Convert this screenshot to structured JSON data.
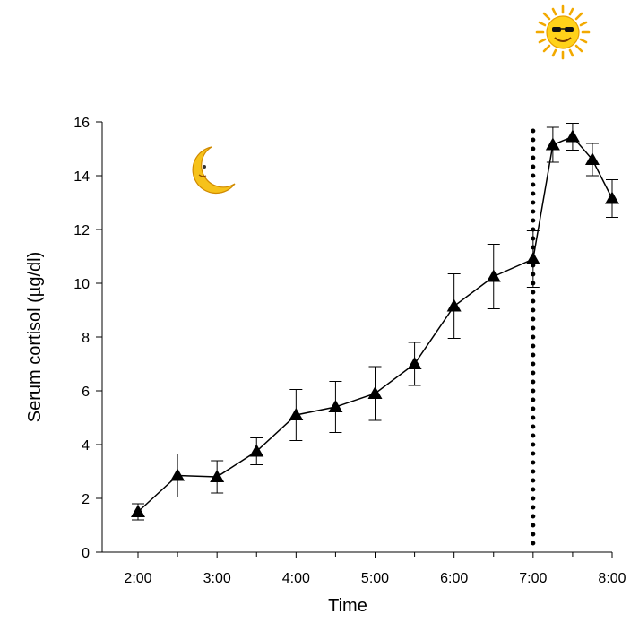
{
  "chart_data": {
    "type": "line",
    "xlabel": "Time",
    "ylabel": "Serum cortisol (µg/dl)",
    "x_ticks": [
      "2:00",
      "3:00",
      "4:00",
      "5:00",
      "6:00",
      "7:00",
      "8:00"
    ],
    "x_range": [
      "2:00",
      "8:00"
    ],
    "ylim": [
      0,
      16
    ],
    "y_ticks": [
      "0",
      "2",
      "4",
      "6",
      "8",
      "10",
      "12",
      "14",
      "16"
    ],
    "grid": false,
    "series": [
      {
        "marker": "triangle",
        "color": "#000000",
        "points": [
          {
            "x": "2:00",
            "y": 1.5,
            "err": 0.3
          },
          {
            "x": "2:30",
            "y": 2.85,
            "err": 0.8
          },
          {
            "x": "3:00",
            "y": 2.8,
            "err": 0.6
          },
          {
            "x": "3:30",
            "y": 3.75,
            "err": 0.5
          },
          {
            "x": "4:00",
            "y": 5.1,
            "err": 0.95
          },
          {
            "x": "4:30",
            "y": 5.4,
            "err": 0.95
          },
          {
            "x": "5:00",
            "y": 5.9,
            "err": 1.0
          },
          {
            "x": "5:30",
            "y": 7.0,
            "err": 0.8
          },
          {
            "x": "6:00",
            "y": 9.15,
            "err": 1.2
          },
          {
            "x": "6:30",
            "y": 10.25,
            "err": 1.2
          },
          {
            "x": "7:00",
            "y": 10.9,
            "err": 1.05
          },
          {
            "x": "7:15",
            "y": 15.15,
            "err": 0.65
          },
          {
            "x": "7:30",
            "y": 15.45,
            "err": 0.5
          },
          {
            "x": "7:45",
            "y": 14.6,
            "err": 0.6
          },
          {
            "x": "8:00",
            "y": 13.15,
            "err": 0.7
          }
        ]
      }
    ],
    "reference_line": {
      "x": "7:00",
      "style": "dotted"
    },
    "icons": [
      "moon-icon",
      "sun-icon"
    ]
  }
}
